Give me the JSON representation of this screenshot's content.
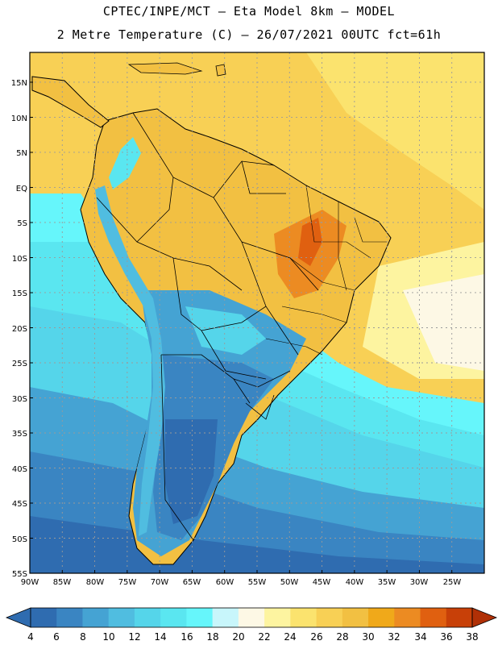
{
  "title_line1": "CPTEC/INPE/MCT –  Eta Model 8km – MODEL",
  "title_line2": "2 Metre Temperature (C) – 26/07/2021 00UTC fct=61h",
  "lat_labels": [
    "15N",
    "10N",
    "5N",
    "EQ",
    "5S",
    "10S",
    "15S",
    "20S",
    "25S",
    "30S",
    "35S",
    "40S",
    "45S",
    "50S",
    "55S"
  ],
  "lon_labels": [
    "90W",
    "85W",
    "80W",
    "75W",
    "70W",
    "65W",
    "60W",
    "55W",
    "50W",
    "45W",
    "40W",
    "35W",
    "30W",
    "25W"
  ],
  "colorbar": {
    "labels": [
      "4",
      "6",
      "8",
      "10",
      "12",
      "14",
      "16",
      "18",
      "20",
      "22",
      "24",
      "26",
      "28",
      "30",
      "32",
      "34",
      "36",
      "38"
    ],
    "colors": [
      "#2f6cb0",
      "#3a85c2",
      "#45a3d3",
      "#50bde0",
      "#55d5ea",
      "#5ae6f0",
      "#66f6fb",
      "#c8f6fb",
      "#fdf8e5",
      "#fdf4a0",
      "#fbe36e",
      "#f8d055",
      "#f2c042",
      "#f0a91a",
      "#ec8b22",
      "#e06010",
      "#c84008",
      "#b03006"
    ]
  },
  "colors": {
    "ocean_deep": "#2f6cb0",
    "ocean_mid": "#3a85c2",
    "ocean_cyan": "#55d5ea",
    "ocean_light": "#66f6fb",
    "warm_sea": "#f8d055",
    "land_tropical": "#f2c042",
    "land_hot": "#ec8b22",
    "andes": "#45a3d3"
  }
}
